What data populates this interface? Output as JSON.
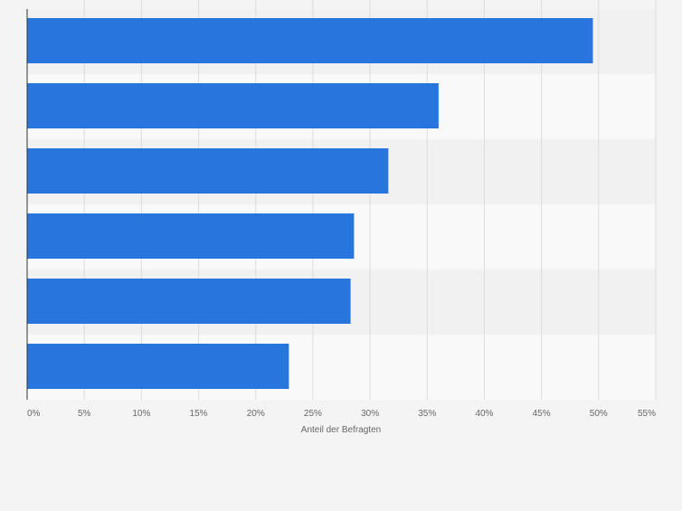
{
  "chart_data": {
    "type": "bar",
    "orientation": "horizontal",
    "categories": [
      "",
      "",
      "",
      "",
      "",
      ""
    ],
    "values": [
      49.5,
      36.0,
      31.6,
      28.6,
      28.3,
      22.9
    ],
    "xlabel": "Anteil der Befragten",
    "xlim": [
      0,
      55
    ],
    "xticks": [
      "0%",
      "5%",
      "10%",
      "15%",
      "20%",
      "25%",
      "30%",
      "35%",
      "40%",
      "45%",
      "50%",
      "55%"
    ],
    "grid": true,
    "legend": "none",
    "colors": {
      "bar": "#2876dd",
      "band_light": "#f9f9f9",
      "band_dark": "#f1f1f1",
      "grid": "#dcdcdc",
      "axis": "#333333",
      "tick_text": "#666666"
    }
  }
}
